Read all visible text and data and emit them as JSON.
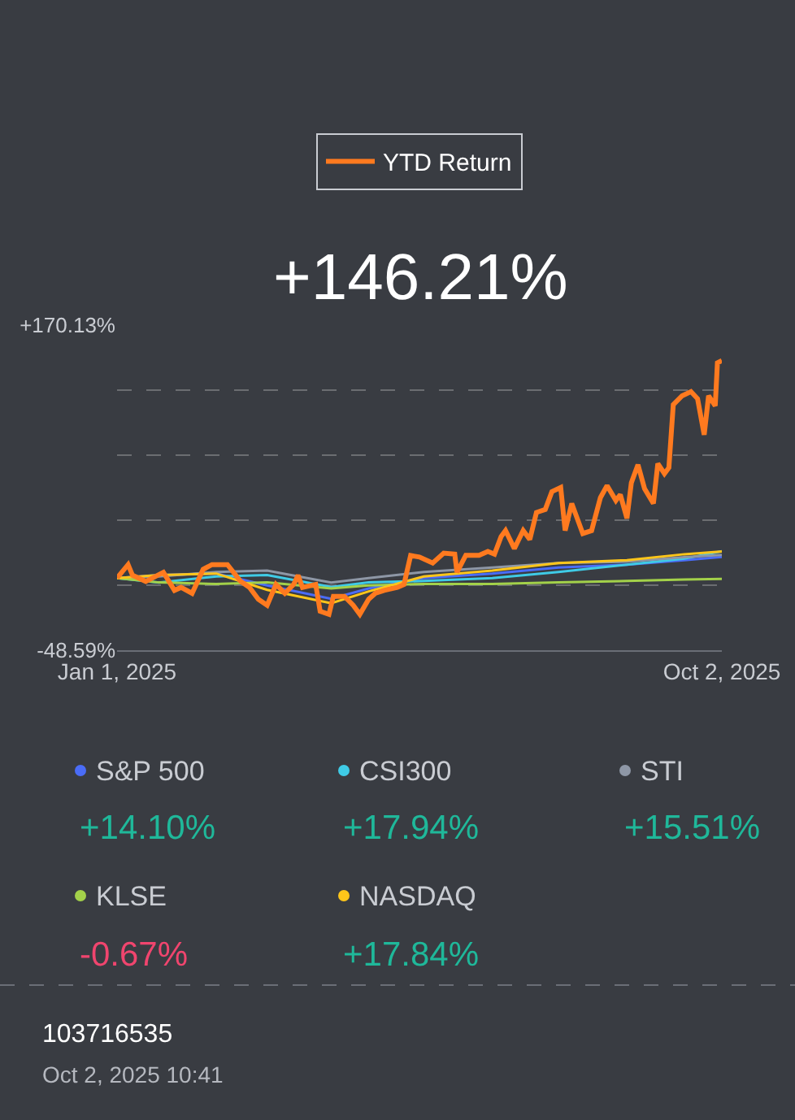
{
  "chart_data": {
    "type": "line",
    "title": "+146.21%",
    "series": [
      {
        "name": "YTD Return",
        "color": "#ff7a1f",
        "x": [
          "2025-01-01",
          "2025-01-06",
          "2025-01-08",
          "2025-01-14",
          "2025-01-22",
          "2025-01-27",
          "2025-01-30",
          "2025-02-04",
          "2025-02-09",
          "2025-02-13",
          "2025-02-20",
          "2025-02-26",
          "2025-03-02",
          "2025-03-06",
          "2025-03-10",
          "2025-03-14",
          "2025-03-18",
          "2025-03-22",
          "2025-03-24",
          "2025-03-26",
          "2025-04-01",
          "2025-04-03",
          "2025-04-07",
          "2025-04-09",
          "2025-04-14",
          "2025-04-18",
          "2025-04-21",
          "2025-04-25",
          "2025-04-28",
          "2025-05-02",
          "2025-05-08",
          "2025-05-11",
          "2025-05-14",
          "2025-05-18",
          "2025-05-24",
          "2025-05-29",
          "2025-06-03",
          "2025-06-04",
          "2025-06-08",
          "2025-06-14",
          "2025-06-18",
          "2025-06-21",
          "2025-06-24",
          "2025-06-26",
          "2025-06-30",
          "2025-07-04",
          "2025-07-07",
          "2025-07-10",
          "2025-07-14",
          "2025-07-17",
          "2025-07-21",
          "2025-07-23",
          "2025-07-26",
          "2025-07-31",
          "2025-08-04",
          "2025-08-08",
          "2025-08-11",
          "2025-08-15",
          "2025-08-17",
          "2025-08-20",
          "2025-08-22",
          "2025-08-25",
          "2025-08-28",
          "2025-09-01",
          "2025-09-03",
          "2025-09-06",
          "2025-09-08",
          "2025-09-10",
          "2025-09-14",
          "2025-09-18",
          "2025-09-21",
          "2025-09-24",
          "2025-09-26",
          "2025-09-29",
          "2025-09-30",
          "2025-10-02"
        ],
        "values": [
          0,
          9.0,
          1.8,
          -2.3,
          3.8,
          -8.3,
          -6.3,
          -10.3,
          5.8,
          9.0,
          9.0,
          -2.3,
          -6.3,
          -14.3,
          -18.4,
          -4.3,
          -10.3,
          -4.3,
          1.8,
          -6.3,
          -4.3,
          -22.4,
          -24.4,
          -12.3,
          -12.3,
          -18.4,
          -24.4,
          -14.3,
          -10.3,
          -8.3,
          -6.3,
          -4.3,
          15.1,
          14.1,
          10.1,
          16.7,
          16.1,
          3.8,
          15.3,
          15.3,
          17.9,
          16.1,
          27.9,
          31.9,
          19.8,
          31.9,
          25.9,
          44.1,
          46.1,
          58.1,
          60.9,
          31.9,
          50.1,
          29.9,
          31.9,
          54.1,
          62.1,
          52.1,
          56.1,
          40.1,
          64.1,
          76.2,
          60.1,
          50.1,
          77.0,
          70.2,
          74.2,
          116.6,
          122.6,
          125.4,
          120.6,
          96.4,
          122.6,
          115.8,
          144.7,
          146.21
        ]
      },
      {
        "name": "S&P 500",
        "color": "#4a6cf7",
        "x": [
          "2025-01-01",
          "2025-01-20",
          "2025-02-15",
          "2025-03-10",
          "2025-04-08",
          "2025-04-25",
          "2025-05-20",
          "2025-06-20",
          "2025-07-20",
          "2025-08-20",
          "2025-09-15",
          "2025-10-02"
        ],
        "values": [
          0,
          2,
          3,
          -5,
          -14,
          -7,
          0,
          3,
          7,
          9,
          12,
          14.1
        ]
      },
      {
        "name": "CSI300",
        "color": "#3fcbe6",
        "x": [
          "2025-01-01",
          "2025-01-20",
          "2025-02-15",
          "2025-03-10",
          "2025-04-08",
          "2025-04-25",
          "2025-05-20",
          "2025-06-20",
          "2025-07-20",
          "2025-08-20",
          "2025-09-15",
          "2025-10-02"
        ],
        "values": [
          0,
          -3,
          1,
          2,
          -6,
          -3,
          -2,
          0,
          4,
          9,
          13,
          17.94
        ]
      },
      {
        "name": "STI",
        "color": "#8e97a6",
        "x": [
          "2025-01-01",
          "2025-01-20",
          "2025-02-15",
          "2025-03-10",
          "2025-04-08",
          "2025-04-25",
          "2025-05-20",
          "2025-06-20",
          "2025-07-20",
          "2025-08-20",
          "2025-09-15",
          "2025-10-02"
        ],
        "values": [
          0,
          1,
          4,
          5,
          -3,
          0,
          4,
          7,
          10,
          11,
          14,
          15.51
        ]
      },
      {
        "name": "KLSE",
        "color": "#a3d14a",
        "x": [
          "2025-01-01",
          "2025-01-20",
          "2025-02-15",
          "2025-03-10",
          "2025-04-08",
          "2025-04-25",
          "2025-05-20",
          "2025-06-20",
          "2025-07-20",
          "2025-08-20",
          "2025-09-15",
          "2025-10-02"
        ],
        "values": [
          0,
          -3,
          -4,
          -3,
          -7,
          -5,
          -4,
          -4,
          -3,
          -2,
          -1,
          -0.67
        ]
      },
      {
        "name": "NASDAQ",
        "color": "#ffc61a",
        "x": [
          "2025-01-01",
          "2025-01-20",
          "2025-02-15",
          "2025-03-10",
          "2025-04-08",
          "2025-04-25",
          "2025-05-20",
          "2025-06-20",
          "2025-07-20",
          "2025-08-20",
          "2025-09-15",
          "2025-10-02"
        ],
        "values": [
          0,
          2,
          3,
          -8,
          -17,
          -9,
          1,
          5,
          10,
          12,
          16,
          17.84
        ]
      }
    ],
    "xlim": [
      "2025-01-01",
      "2025-10-02"
    ],
    "xticks": [
      {
        "value": "2025-01-01",
        "label": "Jan 1, 2025"
      },
      {
        "value": "2025-10-02",
        "label": "Oct 2, 2025"
      }
    ],
    "ylim": [
      -48.59,
      170.13
    ],
    "yticks": [
      {
        "value": -48.59,
        "label": "-48.59%"
      },
      {
        "value": -4.85,
        "label": null
      },
      {
        "value": 38.9,
        "label": null
      },
      {
        "value": 82.64,
        "label": null
      },
      {
        "value": 126.39,
        "label": null
      },
      {
        "value": 170.13,
        "label": "+170.13%"
      }
    ],
    "grid": "y",
    "legend": "bottom",
    "line_style": "solid",
    "marker": "none",
    "annotations": [
      "+14.10%",
      "+17.94%",
      "+15.51%",
      "-0.67%",
      "+17.84%",
      "103716535",
      "Oct 2, 2025 10:41"
    ]
  }
}
